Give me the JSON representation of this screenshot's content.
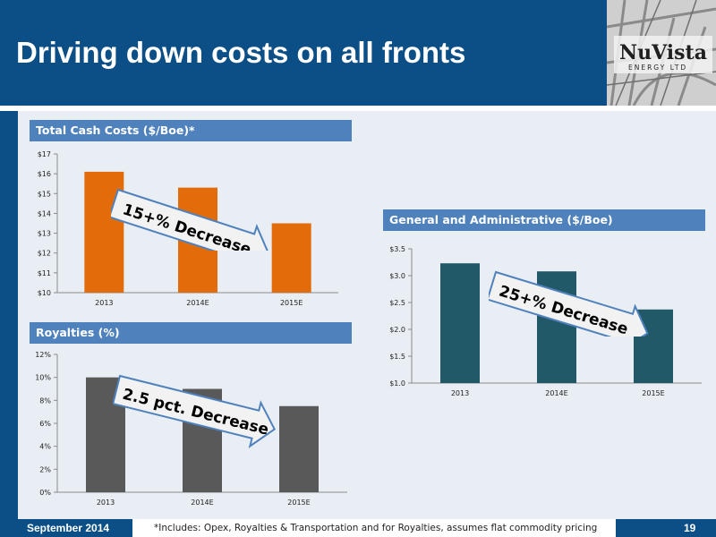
{
  "slide": {
    "title": "Driving down costs on all fronts",
    "footer_date": "September 2014",
    "footnote": "*Includes: Opex, Royalties & Transportation and for Royalties, assumes flat commodity pricing",
    "page_number": "19",
    "logo": {
      "text": "NuVista",
      "subtext": "ENERGY LTD"
    }
  },
  "colors": {
    "header": "#0b4f86",
    "section_header": "#4f81bd",
    "panel": "#e8eef3",
    "bar_total": "#e36c0a",
    "bar_ga": "#215968",
    "bar_roy": "#595959"
  },
  "chart_data": [
    {
      "id": "total",
      "type": "bar",
      "title": "Total Cash Costs ($/Boe)*",
      "categories": [
        "2013",
        "2014E",
        "2015E"
      ],
      "values": [
        16.1,
        15.3,
        13.5
      ],
      "ylim": [
        10,
        17
      ],
      "yticks": [
        10,
        11,
        12,
        13,
        14,
        15,
        16,
        17
      ],
      "ytick_labels": [
        "$10",
        "$11",
        "$12",
        "$13",
        "$14",
        "$15",
        "$16",
        "$17"
      ],
      "annotation": "15+% Decrease",
      "grid": false
    },
    {
      "id": "ga",
      "type": "bar",
      "title": "General and Administrative ($/Boe)",
      "categories": [
        "2013",
        "2014E",
        "2015E"
      ],
      "values": [
        3.23,
        3.08,
        2.37
      ],
      "ylim": [
        1.0,
        3.5
      ],
      "yticks": [
        1.0,
        1.5,
        2.0,
        2.5,
        3.0,
        3.5
      ],
      "ytick_labels": [
        "$1.0",
        "$1.5",
        "$2.0",
        "$2.5",
        "$3.0",
        "$3.5"
      ],
      "annotation": "25+% Decrease",
      "grid": false
    },
    {
      "id": "roy",
      "type": "bar",
      "title": "Royalties (%)",
      "categories": [
        "2013",
        "2014E",
        "2015E"
      ],
      "values": [
        10,
        9,
        7.5
      ],
      "ylim": [
        0,
        12
      ],
      "yticks": [
        0,
        2,
        4,
        6,
        8,
        10,
        12
      ],
      "ytick_labels": [
        "0%",
        "2%",
        "4%",
        "6%",
        "8%",
        "10%",
        "12%"
      ],
      "annotation": "2.5 pct. Decrease",
      "grid": false
    }
  ]
}
